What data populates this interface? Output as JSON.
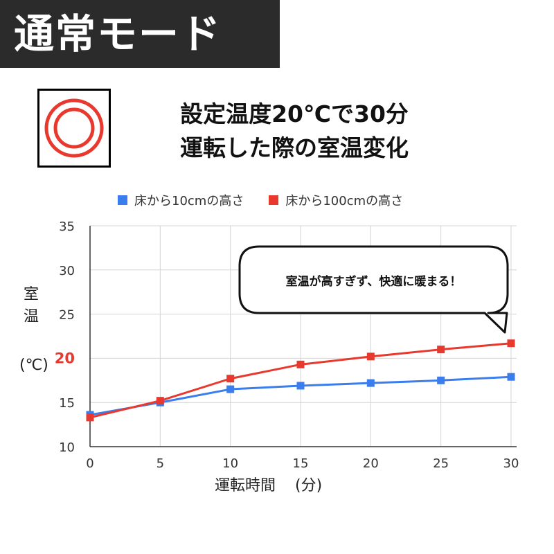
{
  "mode_label": "通常モード",
  "icon": "double-ring-heater-icon",
  "bubble_text": "室温が高すぎず、快適に暖まる！",
  "colors": {
    "banner_bg": "#2b2b2b",
    "series_low": "#3b7ded",
    "series_high": "#e8392f",
    "highlight_tick": "#e8392f"
  },
  "chart_data": {
    "type": "line",
    "title_lines": [
      "設定温度20℃で30分",
      "運転した際の室温変化"
    ],
    "xlabel_parts": [
      "運転時間",
      "(分)"
    ],
    "ylabel_chars": [
      "室",
      "温"
    ],
    "ylabel_unit": "(℃)",
    "x": [
      0,
      5,
      10,
      15,
      20,
      25,
      30
    ],
    "xlim": [
      0,
      30
    ],
    "ylim": [
      10,
      35
    ],
    "xticks": [
      "0",
      "5",
      "10",
      "15",
      "20",
      "25",
      "30"
    ],
    "yticks": [
      "10",
      "15",
      "20",
      "25",
      "30",
      "35"
    ],
    "highlight_ytick": "20",
    "grid": true,
    "legend_position": "top",
    "series": [
      {
        "name": "床から10cmの高さ",
        "color": "#3b7ded",
        "values": [
          13.6,
          15.0,
          16.5,
          16.9,
          17.2,
          17.5,
          17.9
        ]
      },
      {
        "name": "床から100cmの高さ",
        "color": "#e8392f",
        "values": [
          13.3,
          15.2,
          17.7,
          19.3,
          20.2,
          21.0,
          21.7
        ]
      }
    ]
  }
}
